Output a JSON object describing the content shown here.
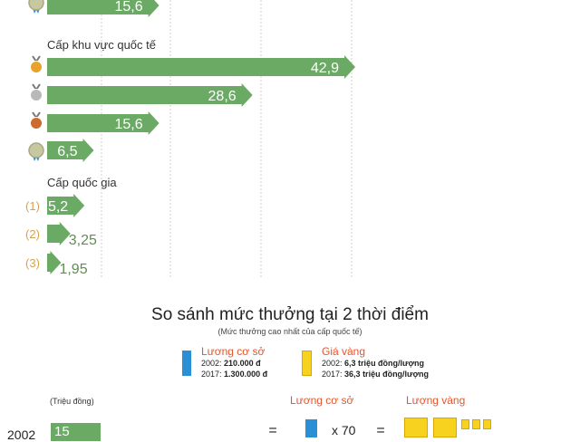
{
  "chart_data": {
    "type": "bar",
    "orientation": "horizontal",
    "top_partial_value": 15.6,
    "top_partial_label": "15,6",
    "sections": [
      {
        "title": "Cấp khu vực quốc tế",
        "icons": [
          "gold-medal-icon",
          "silver-medal-icon",
          "bronze-medal-icon",
          "merit-medal-icon"
        ],
        "values": [
          42.9,
          28.6,
          15.6,
          6.5
        ],
        "labels": [
          "42,9",
          "28,6",
          "15,6",
          "6,5"
        ]
      },
      {
        "title": "Cấp quốc gia",
        "icons": [
          "rank-1-icon",
          "rank-2-icon",
          "rank-3-icon"
        ],
        "rank_labels": [
          "1",
          "2",
          "3"
        ],
        "values": [
          5.2,
          3.25,
          1.95
        ],
        "labels": [
          "5,2",
          "3,25",
          "1,95"
        ]
      }
    ],
    "xlim": [
      0,
      45
    ],
    "grid": true
  },
  "comparison": {
    "title": "So sánh mức thưởng tại 2 thời điểm",
    "subtitle": "(Mức thưởng cao nhất của cấp quốc tế)",
    "legend": [
      {
        "title": "Lương cơ sở",
        "color": "#2b8fd6",
        "line1_prefix": "2002:",
        "line1_value": "210.000 đ",
        "line2_prefix": "2017:",
        "line2_value": "1.300.000 đ"
      },
      {
        "title": "Giá vàng",
        "color": "#f7d21f",
        "line1_prefix": "2002:",
        "line1_value": "6,3 triệu đồng/lượng",
        "line2_prefix": "2017:",
        "line2_value": "36,3 triệu đồng/lượng"
      }
    ],
    "unit": "(Triệu đồng)",
    "col_salary": "Lương cơ sở",
    "col_gold": "Lượng vàng",
    "row_year": "2002",
    "row_value": "15",
    "equals": "=",
    "multiplier": "x 70"
  },
  "colors": {
    "bar": "#6aaa64",
    "accent": "#e8542a",
    "blue": "#2b8fd6",
    "gold": "#f7d21f"
  }
}
